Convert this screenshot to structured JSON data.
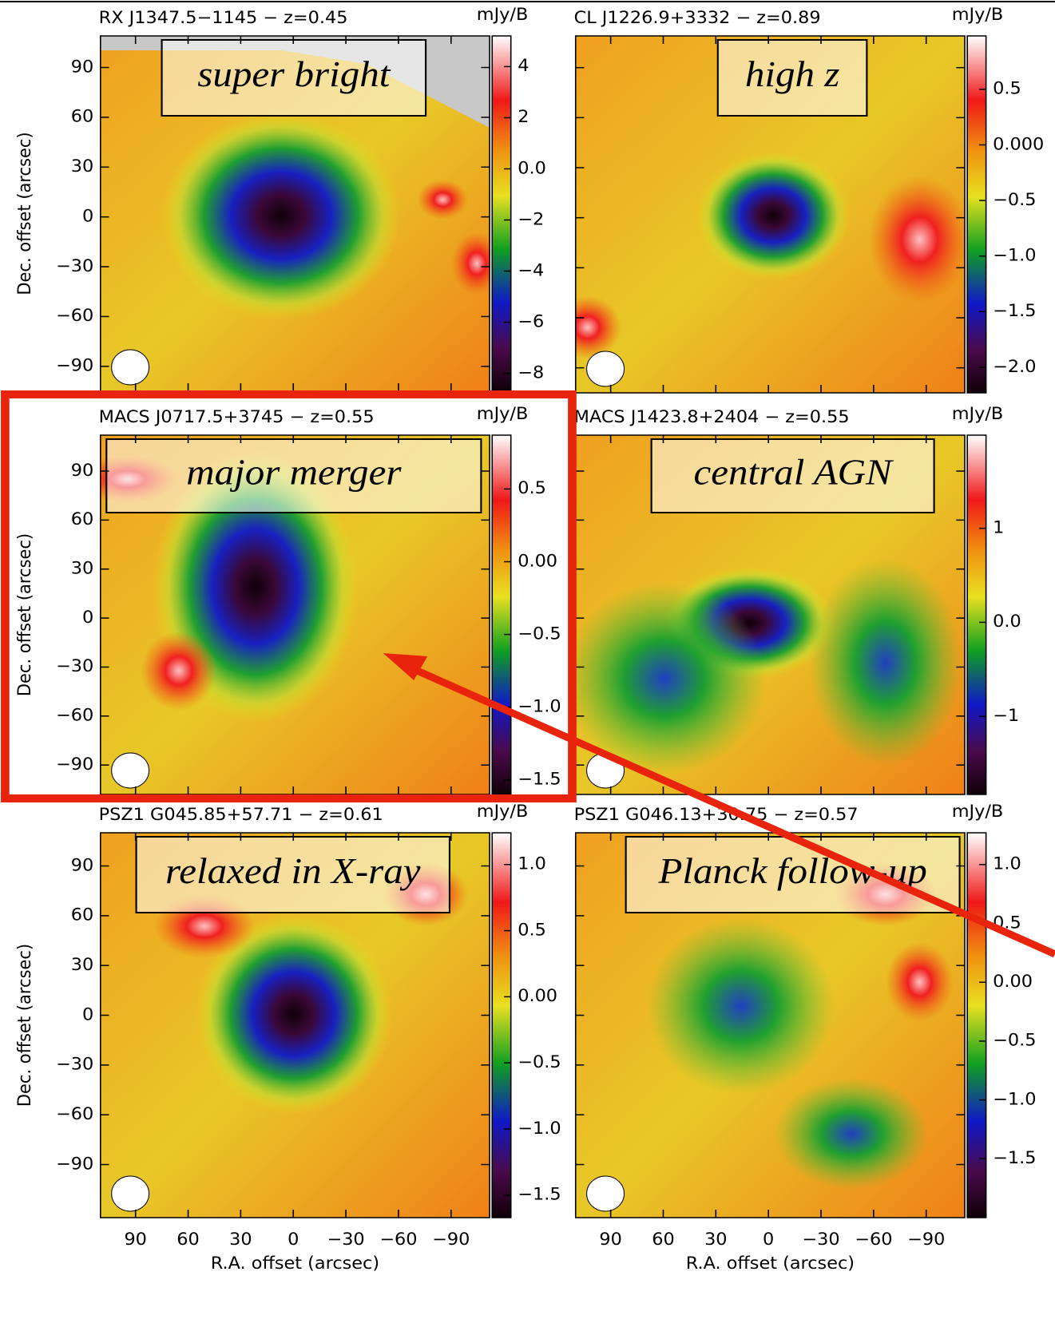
{
  "chart_data": [
    {
      "type": "heatmap",
      "title": "RX J1347.5−1145  −  z=0.45",
      "annotation": "super bright",
      "colorbar_label": "mJy/B",
      "ylabel": "Dec. offset (arcsec)",
      "xlim": [
        110,
        -112
      ],
      "ylim": [
        -105,
        109
      ],
      "xticks": [
        90,
        60,
        30,
        0,
        {
          "value": -30,
          "label": "−30"
        },
        {
          "value": -60,
          "label": "−60"
        },
        {
          "value": -90,
          "label": "−90"
        }
      ],
      "yticks": [
        90,
        60,
        30,
        0,
        {
          "value": -30,
          "label": "−30"
        },
        {
          "value": -60,
          "label": "−60"
        },
        {
          "value": -90,
          "label": "−90"
        }
      ],
      "clim": [
        -8.7,
        5.2
      ],
      "cticks": [
        4,
        2,
        {
          "value": 0,
          "label": "0.0"
        },
        {
          "value": -2,
          "label": "−2"
        },
        {
          "value": -4,
          "label": "−4"
        },
        {
          "value": -6,
          "label": "−6"
        },
        {
          "value": -8,
          "label": "−8"
        }
      ]
    },
    {
      "type": "heatmap",
      "title": "CL J1226.9+3332  −  z=0.89",
      "annotation": "high z",
      "colorbar_label": "mJy/B",
      "xlim": [
        110,
        -112
      ],
      "ylim": [
        -105,
        109
      ],
      "xticks": [
        90,
        60,
        30,
        0,
        {
          "value": -30,
          "label": "−30"
        },
        {
          "value": -60,
          "label": "−60"
        },
        {
          "value": -90,
          "label": "−90"
        }
      ],
      "yticks": [
        90,
        60,
        30,
        0,
        {
          "value": -30,
          "label": "−30"
        },
        {
          "value": -60,
          "label": "−60"
        },
        {
          "value": -90,
          "label": "−90"
        }
      ],
      "clim": [
        -2.23,
        0.98
      ],
      "cticks": [
        0.5,
        {
          "value": 0,
          "label": "0.000"
        },
        {
          "value": -0.5,
          "label": "−0.5"
        },
        {
          "value": -1,
          "label": "−1.0"
        },
        {
          "value": -1.5,
          "label": "−1.5"
        },
        {
          "value": -2,
          "label": "−2.0"
        }
      ]
    },
    {
      "type": "heatmap",
      "title": "MACS J0717.5+3745  −  z=0.55",
      "annotation": "major merger",
      "colorbar_label": "mJy/B",
      "ylabel": "Dec. offset (arcsec)",
      "xlim": [
        110,
        -112
      ],
      "ylim": [
        -108,
        112
      ],
      "xticks": [
        90,
        60,
        30,
        0,
        {
          "value": -30,
          "label": "−30"
        },
        {
          "value": -60,
          "label": "−60"
        },
        {
          "value": -90,
          "label": "−90"
        }
      ],
      "yticks": [
        90,
        60,
        30,
        0,
        {
          "value": -30,
          "label": "−30"
        },
        {
          "value": -60,
          "label": "−60"
        },
        {
          "value": -90,
          "label": "−90"
        }
      ],
      "clim": [
        -1.6,
        0.87
      ],
      "cticks": [
        0.5,
        {
          "value": 0,
          "label": "0.00"
        },
        {
          "value": -0.5,
          "label": "−0.5"
        },
        {
          "value": -1,
          "label": "−1.0"
        },
        {
          "value": -1.5,
          "label": "−1.5"
        }
      ]
    },
    {
      "type": "heatmap",
      "title": "MACS J1423.8+2404  −  z=0.55",
      "annotation": "central AGN",
      "colorbar_label": "mJy/B",
      "xlim": [
        110,
        -112
      ],
      "ylim": [
        -108,
        112
      ],
      "xticks": [
        90,
        60,
        30,
        0,
        {
          "value": -30,
          "label": "−30"
        },
        {
          "value": -60,
          "label": "−60"
        },
        {
          "value": -90,
          "label": "−90"
        }
      ],
      "yticks": [
        90,
        60,
        30,
        0,
        {
          "value": -30,
          "label": "−30"
        },
        {
          "value": -60,
          "label": "−60"
        },
        {
          "value": -90,
          "label": "−90"
        }
      ],
      "clim": [
        -1.83,
        1.99
      ],
      "cticks": [
        1,
        {
          "value": 0,
          "label": "0.0"
        },
        {
          "value": -1,
          "label": "−1"
        }
      ]
    },
    {
      "type": "heatmap",
      "title": "PSZ1 G045.85+57.71  −  z=0.61",
      "annotation": "relaxed in X-ray",
      "colorbar_label": "mJy/B",
      "ylabel": "Dec. offset (arcsec)",
      "xlabel": "R.A. offset (arcsec)",
      "xlim": [
        110,
        -112
      ],
      "ylim": [
        -122,
        110
      ],
      "xticks": [
        90,
        60,
        30,
        0,
        {
          "value": -30,
          "label": "−30"
        },
        {
          "value": -60,
          "label": "−60"
        },
        {
          "value": -90,
          "label": "−90"
        }
      ],
      "yticks": [
        90,
        60,
        30,
        0,
        {
          "value": -30,
          "label": "−30"
        },
        {
          "value": -60,
          "label": "−60"
        },
        {
          "value": -90,
          "label": "−90"
        }
      ],
      "clim": [
        -1.67,
        1.24
      ],
      "cticks": [
        {
          "value": 1,
          "label": "1.0"
        },
        0.5,
        {
          "value": 0,
          "label": "0.00"
        },
        {
          "value": -0.5,
          "label": "−0.5"
        },
        {
          "value": -1,
          "label": "−1.0"
        },
        {
          "value": -1.5,
          "label": "−1.5"
        }
      ]
    },
    {
      "type": "heatmap",
      "title": "PSZ1 G046.13+30.75  −  z=0.57",
      "annotation": "Planck follow-up",
      "colorbar_label": "mJy/B",
      "xlabel": "R.A. offset (arcsec)",
      "xlim": [
        110,
        -112
      ],
      "ylim": [
        -122,
        110
      ],
      "xticks": [
        90,
        60,
        30,
        0,
        {
          "value": -30,
          "label": "−30"
        },
        {
          "value": -60,
          "label": "−60"
        },
        {
          "value": -90,
          "label": "−90"
        }
      ],
      "yticks": [
        90,
        60,
        30,
        0,
        {
          "value": -30,
          "label": "−30"
        },
        {
          "value": -60,
          "label": "−60"
        },
        {
          "value": -90,
          "label": "−90"
        }
      ],
      "clim": [
        -2.0,
        1.27
      ],
      "cticks": [
        {
          "value": 1,
          "label": "1.0"
        },
        0.5,
        {
          "value": 0,
          "label": "0.00"
        },
        {
          "value": -0.5,
          "label": "−0.5"
        },
        {
          "value": -1,
          "label": "−1.0"
        },
        {
          "value": -1.5,
          "label": "−1.5"
        }
      ]
    }
  ]
}
